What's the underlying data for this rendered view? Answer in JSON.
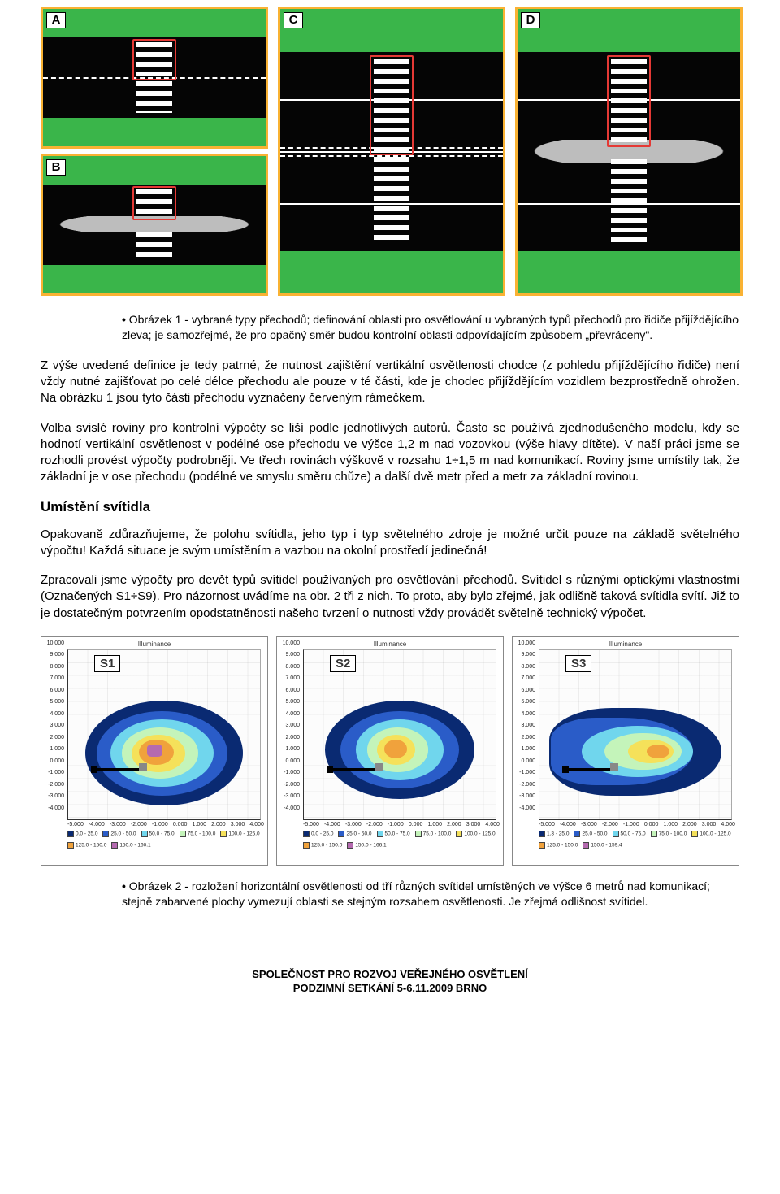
{
  "fig1": {
    "labels": {
      "a": "A",
      "b": "B",
      "c": "C",
      "d": "D"
    },
    "border_color": "#f9b233",
    "grass_color": "#3ab54a",
    "road_color": "#050505",
    "lane_line_color": "#ffffff",
    "island_color": "#bdbdbd",
    "red_rect_color": "#e53935"
  },
  "caption1": "Obrázek 1 - vybrané typy přechodů; definování oblasti pro osvětlování u vybraných typů přechodů pro řidiče přijíždějícího zleva; je samozřejmé, že pro opačný směr budou kontrolní oblasti odpovídajícím způsobem „převráceny\".",
  "para1": "Z výše uvedené definice je tedy patrné, že nutnost zajištění vertikální osvětlenosti chodce (z pohledu přijíždějícího řidiče) není vždy nutné zajišťovat po celé délce přechodu ale pouze v té části, kde je chodec přijíždějícím vozidlem bezprostředně ohrožen. Na obrázku 1 jsou tyto části přechodu vyznačeny červeným rámečkem.",
  "para2": "Volba svislé roviny pro kontrolní výpočty se liší podle jednotlivých autorů. Často se používá zjednodušeného modelu, kdy se hodnotí vertikální osvětlenost v podélné ose přechodu ve výšce 1,2 m nad vozovkou (výše hlavy dítěte). V naší práci jsme se rozhodli provést výpočty podrobněji. Ve třech rovinách výškově v rozsahu 1÷1,5 m nad komunikací. Roviny jsme umístily tak, že základní je v ose přechodu (podélné ve smyslu směru chůze) a další dvě metr před a metr za základní rovinou.",
  "heading": "Umístění svítidla",
  "para3": "Opakovaně zdůrazňujeme, že polohu svítidla, jeho typ i typ světelného zdroje je možné určit pouze na základě světelného výpočtu! Každá situace je svým umístěním a vazbou na okolní prostředí jedinečná!",
  "para4": "Zpracovali jsme výpočty pro devět typů svítidel používaných pro osvětlování přechodů. Svítidel s různými optickými vlastnostmi (Označených S1÷S9). Pro názornost uvádíme na obr. 2 tři z nich. To proto, aby bylo zřejmé, jak odlišně taková svítidla svítí. Již to je dostatečným potvrzením opodstatněnosti našeho tvrzení o nutnosti vždy provádět světelně technický výpočet.",
  "charts": {
    "title": "Illuminance",
    "y_axis_title": "[m]",
    "x_axis_title": "[m]",
    "contour_colors": {
      "c1": "#0a2a72",
      "c2": "#2a5cc8",
      "c3": "#70d6ed",
      "c4": "#c4f4ba",
      "c5": "#f5e15a",
      "c6": "#f0a23c",
      "c7": "#b56ab0"
    },
    "s1": {
      "label": "S1",
      "y_ticks": [
        "10.000",
        "9.000",
        "8.000",
        "7.000",
        "6.000",
        "5.000",
        "4.000",
        "3.000",
        "2.000",
        "1.000",
        "0.000",
        "-1.000",
        "-2.000",
        "-3.000",
        "-4.000"
      ],
      "x_ticks": [
        "-5.000",
        "-4.000",
        "-3.000",
        "-2.000",
        "-1.000",
        "0.000",
        "1.000",
        "2.000",
        "3.000",
        "4.000"
      ],
      "legend": [
        {
          "c": "#0a2a72",
          "t": "0.0 - 25.0"
        },
        {
          "c": "#2a5cc8",
          "t": "25.0 - 50.0"
        },
        {
          "c": "#70d6ed",
          "t": "50.0 - 75.0"
        },
        {
          "c": "#c4f4ba",
          "t": "75.0 - 100.0"
        },
        {
          "c": "#f5e15a",
          "t": "100.0 - 125.0"
        },
        {
          "c": "#f0a23c",
          "t": "125.0 - 150.0"
        },
        {
          "c": "#b56ab0",
          "t": "150.0 - 160.1"
        }
      ]
    },
    "s2": {
      "label": "S2",
      "y_ticks": [
        "10.000",
        "9.000",
        "8.000",
        "7.000",
        "6.000",
        "5.000",
        "4.000",
        "3.000",
        "2.000",
        "1.000",
        "0.000",
        "-1.000",
        "-2.000",
        "-3.000",
        "-4.000"
      ],
      "x_ticks": [
        "-5.000",
        "-4.000",
        "-3.000",
        "-2.000",
        "-1.000",
        "0.000",
        "1.000",
        "2.000",
        "3.000",
        "4.000"
      ],
      "legend": [
        {
          "c": "#0a2a72",
          "t": "0.0 - 25.0"
        },
        {
          "c": "#2a5cc8",
          "t": "25.0 - 50.0"
        },
        {
          "c": "#70d6ed",
          "t": "50.0 - 75.0"
        },
        {
          "c": "#c4f4ba",
          "t": "75.0 - 100.0"
        },
        {
          "c": "#f5e15a",
          "t": "100.0 - 125.0"
        },
        {
          "c": "#f0a23c",
          "t": "125.0 - 150.0"
        },
        {
          "c": "#b56ab0",
          "t": "150.0 - 166.1"
        }
      ]
    },
    "s3": {
      "label": "S3",
      "y_ticks": [
        "10.000",
        "9.000",
        "8.000",
        "7.000",
        "6.000",
        "5.000",
        "4.000",
        "3.000",
        "2.000",
        "1.000",
        "0.000",
        "-1.000",
        "-2.000",
        "-3.000",
        "-4.000"
      ],
      "x_ticks": [
        "-5.000",
        "-4.000",
        "-3.000",
        "-2.000",
        "-1.000",
        "0.000",
        "1.000",
        "2.000",
        "3.000",
        "4.000"
      ],
      "legend": [
        {
          "c": "#0a2a72",
          "t": "1.3 - 25.0"
        },
        {
          "c": "#2a5cc8",
          "t": "25.0 - 50.0"
        },
        {
          "c": "#70d6ed",
          "t": "50.0 - 75.0"
        },
        {
          "c": "#c4f4ba",
          "t": "75.0 - 100.0"
        },
        {
          "c": "#f5e15a",
          "t": "100.0 - 125.0"
        },
        {
          "c": "#f0a23c",
          "t": "125.0 - 150.0"
        },
        {
          "c": "#b56ab0",
          "t": "150.0 - 159.4"
        }
      ]
    }
  },
  "caption2": "Obrázek 2 - rozložení horizontální osvětlenosti od tří různých svítidel umístěných ve výšce 6 metrů nad komunikací; stejně zabarvené plochy vymezují oblasti se stejným rozsahem osvětlenosti. Je zřejmá odlišnost svítidel.",
  "footer1": "SPOLEČNOST PRO ROZVOJ VEŘEJNÉHO OSVĚTLENÍ",
  "footer2": "PODZIMNÍ SETKÁNÍ 5-6.11.2009 BRNO"
}
